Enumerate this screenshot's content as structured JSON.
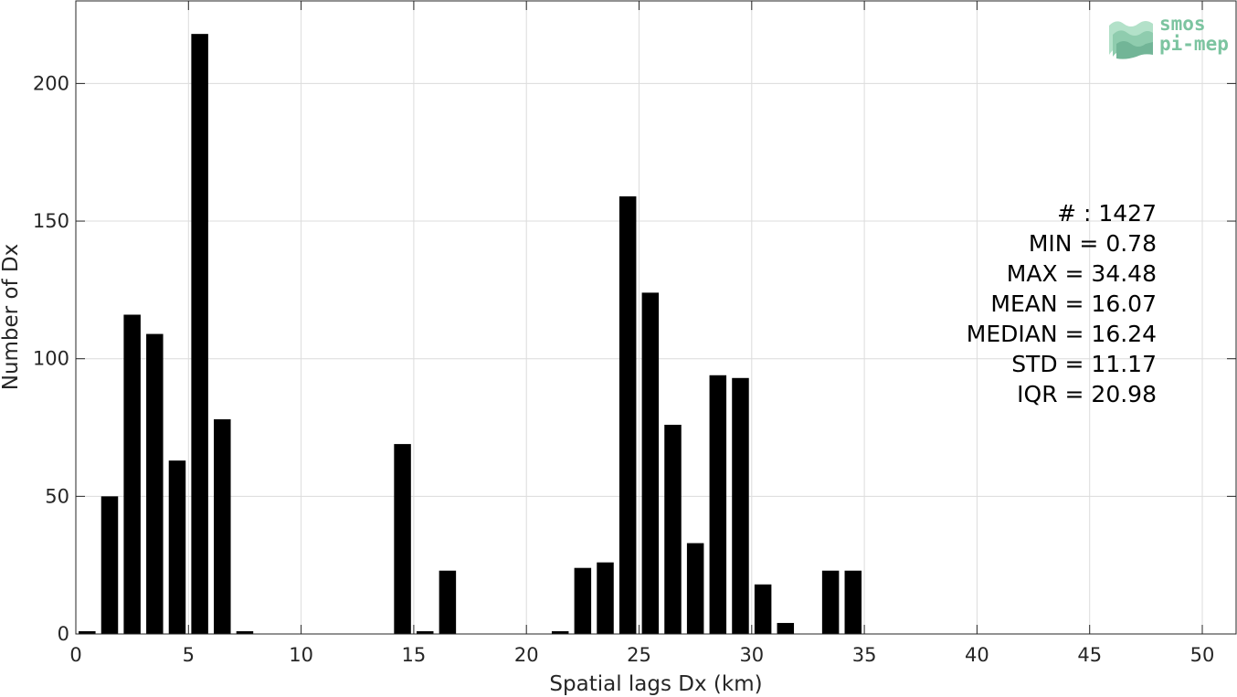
{
  "chart_data": {
    "type": "bar",
    "title": "",
    "xlabel": "Spatial lags Dx (km)",
    "ylabel": "Number of Dx",
    "xlim": [
      0,
      51.5
    ],
    "ylim": [
      0,
      230
    ],
    "xticks": [
      0,
      5,
      10,
      15,
      20,
      25,
      30,
      35,
      40,
      45,
      50
    ],
    "yticks": [
      0,
      50,
      100,
      150,
      200
    ],
    "grid": true,
    "bar_width": 0.75,
    "bar_color": "#000000",
    "x": [
      0.5,
      1.5,
      2.5,
      3.5,
      4.5,
      5.5,
      6.5,
      7.5,
      14.5,
      15.5,
      16.5,
      21.5,
      22.5,
      23.5,
      24.5,
      25.5,
      26.5,
      27.5,
      28.5,
      29.5,
      30.5,
      31.5,
      33.5,
      34.5
    ],
    "values": [
      1,
      50,
      116,
      109,
      63,
      218,
      78,
      1,
      69,
      1,
      23,
      1,
      24,
      26,
      159,
      124,
      76,
      33,
      94,
      93,
      18,
      4,
      23,
      23
    ]
  },
  "stats": {
    "lines": [
      "# : 1427",
      "MIN = 0.78",
      "MAX =  34.48",
      "MEAN = 16.07",
      "MEDIAN = 16.24",
      "STD = 11.17",
      "IQR = 20.98"
    ]
  },
  "logo": {
    "line1": "smos",
    "line2": "pi-mep",
    "color": "#7cc4a0"
  }
}
